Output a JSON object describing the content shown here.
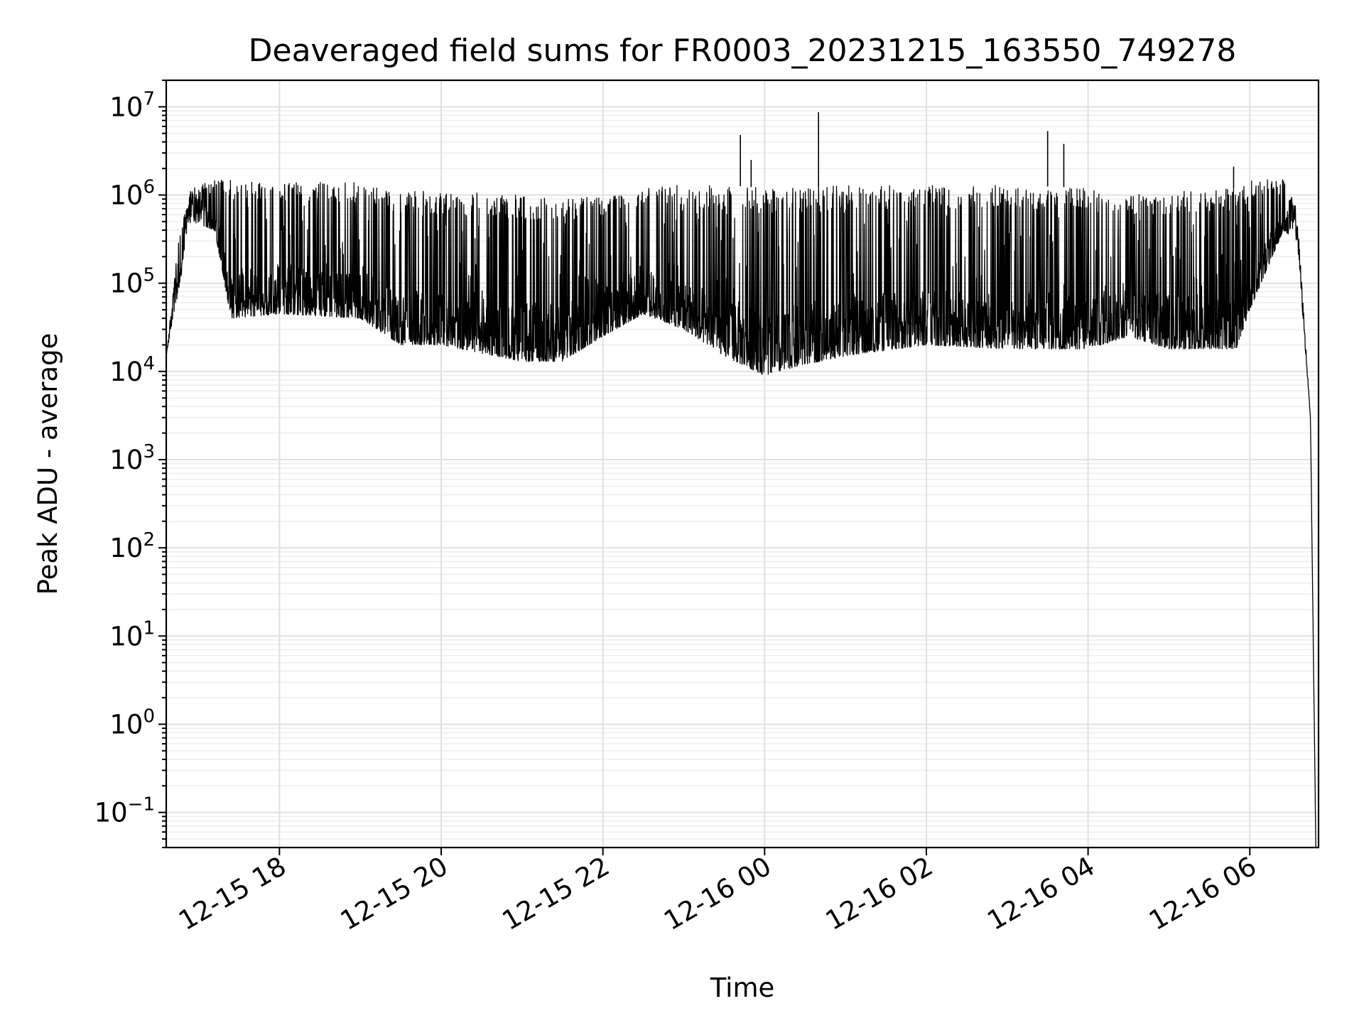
{
  "chart_data": {
    "type": "line",
    "title": "Deaveraged field sums for FR0003_20231215_163550_749278",
    "xlabel": "Time",
    "ylabel": "Peak ADU - average",
    "yscale": "log",
    "xlim": [
      "2023-12-15 16:36",
      "2023-12-16 06:51"
    ],
    "ylim": [
      0.04,
      20000000
    ],
    "grid": "on",
    "legend": "none",
    "x_ticks": [
      {
        "value": "2023-12-15 18:00",
        "label": "12-15 18"
      },
      {
        "value": "2023-12-15 20:00",
        "label": "12-15 20"
      },
      {
        "value": "2023-12-15 22:00",
        "label": "12-15 22"
      },
      {
        "value": "2023-12-16 00:00",
        "label": "12-16 00"
      },
      {
        "value": "2023-12-16 02:00",
        "label": "12-16 02"
      },
      {
        "value": "2023-12-16 04:00",
        "label": "12-16 04"
      },
      {
        "value": "2023-12-16 06:00",
        "label": "12-16 06"
      }
    ],
    "y_ticks": [
      {
        "value": 0.1,
        "base": "10",
        "exp": "−1"
      },
      {
        "value": 1,
        "base": "10",
        "exp": "0"
      },
      {
        "value": 10,
        "base": "10",
        "exp": "1"
      },
      {
        "value": 100,
        "base": "10",
        "exp": "2"
      },
      {
        "value": 1000,
        "base": "10",
        "exp": "3"
      },
      {
        "value": 10000,
        "base": "10",
        "exp": "4"
      },
      {
        "value": 100000,
        "base": "10",
        "exp": "5"
      },
      {
        "value": 1000000,
        "base": "10",
        "exp": "6"
      },
      {
        "value": 10000000,
        "base": "10",
        "exp": "7"
      }
    ],
    "series": [
      {
        "color": "#000000",
        "envelope": [
          {
            "x": "2023-12-15 16:36",
            "low": 15000,
            "high": 15000
          },
          {
            "x": "2023-12-15 16:45",
            "low": 80000,
            "high": 300000
          },
          {
            "x": "2023-12-15 16:54",
            "low": 500000,
            "high": 1200000
          },
          {
            "x": "2023-12-15 17:12",
            "low": 400000,
            "high": 1500000
          },
          {
            "x": "2023-12-15 17:24",
            "low": 40000,
            "high": 1500000
          },
          {
            "x": "2023-12-15 18:00",
            "low": 45000,
            "high": 1400000
          },
          {
            "x": "2023-12-15 19:00",
            "low": 40000,
            "high": 1400000
          },
          {
            "x": "2023-12-15 19:30",
            "low": 20000,
            "high": 1100000
          },
          {
            "x": "2023-12-15 20:00",
            "low": 20000,
            "high": 1100000
          },
          {
            "x": "2023-12-15 21:00",
            "low": 13000,
            "high": 1000000
          },
          {
            "x": "2023-12-15 21:30",
            "low": 13000,
            "high": 950000
          },
          {
            "x": "2023-12-15 22:00",
            "low": 25000,
            "high": 1000000
          },
          {
            "x": "2023-12-15 22:30",
            "low": 45000,
            "high": 1200000
          },
          {
            "x": "2023-12-15 23:00",
            "low": 30000,
            "high": 1300000
          },
          {
            "x": "2023-12-15 23:30",
            "low": 15000,
            "high": 1300000
          },
          {
            "x": "2023-12-16 00:00",
            "low": 9000,
            "high": 1200000
          },
          {
            "x": "2023-12-16 00:30",
            "low": 12000,
            "high": 1200000
          },
          {
            "x": "2023-12-16 01:00",
            "low": 15000,
            "high": 1300000
          },
          {
            "x": "2023-12-16 02:00",
            "low": 20000,
            "high": 1300000
          },
          {
            "x": "2023-12-16 03:00",
            "low": 18000,
            "high": 1300000
          },
          {
            "x": "2023-12-16 04:00",
            "low": 18000,
            "high": 1200000
          },
          {
            "x": "2023-12-16 04:30",
            "low": 25000,
            "high": 1000000
          },
          {
            "x": "2023-12-16 05:00",
            "low": 18000,
            "high": 1100000
          },
          {
            "x": "2023-12-16 05:50",
            "low": 18000,
            "high": 1200000
          },
          {
            "x": "2023-12-16 06:00",
            "low": 50000,
            "high": 1500000
          },
          {
            "x": "2023-12-16 06:25",
            "low": 400000,
            "high": 1500000
          },
          {
            "x": "2023-12-16 06:35",
            "low": 300000,
            "high": 700000
          },
          {
            "x": "2023-12-16 06:45",
            "low": 3000,
            "high": 3000
          },
          {
            "x": "2023-12-16 06:49",
            "low": 0.04,
            "high": 0.04
          }
        ],
        "spikes": [
          {
            "x": "2023-12-15 23:42",
            "y": 4800000
          },
          {
            "x": "2023-12-15 23:50",
            "y": 2500000
          },
          {
            "x": "2023-12-16 00:40",
            "y": 8700000
          },
          {
            "x": "2023-12-16 03:30",
            "y": 5300000
          },
          {
            "x": "2023-12-16 03:42",
            "y": 3800000
          },
          {
            "x": "2023-12-16 05:48",
            "y": 2100000
          }
        ]
      }
    ]
  }
}
